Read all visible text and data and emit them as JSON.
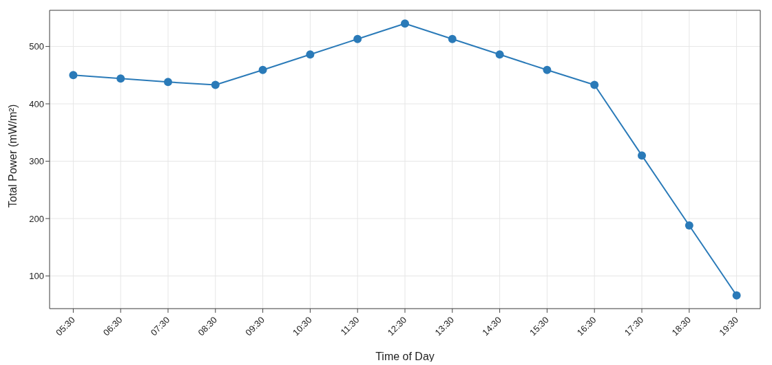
{
  "chart_data": {
    "type": "line",
    "xlabel": "Time of Day",
    "ylabel": "Total Power (mW/m²)",
    "categories": [
      "05:30",
      "06:30",
      "07:30",
      "08:30",
      "09:30",
      "10:30",
      "11:30",
      "12:30",
      "13:30",
      "14:30",
      "15:30",
      "16:30",
      "17:30",
      "18:30",
      "19:30"
    ],
    "series": [
      {
        "color": "#2a7ab8",
        "values": [
          450,
          444,
          438,
          433,
          459,
          486,
          513,
          540,
          513,
          486,
          459,
          433,
          310,
          188,
          66
        ]
      }
    ],
    "ylim": [
      43,
      563
    ],
    "yticks": [
      100,
      200,
      300,
      400,
      500
    ],
    "grid": true,
    "marker": "circle",
    "line_style": "solid",
    "legend": false
  }
}
